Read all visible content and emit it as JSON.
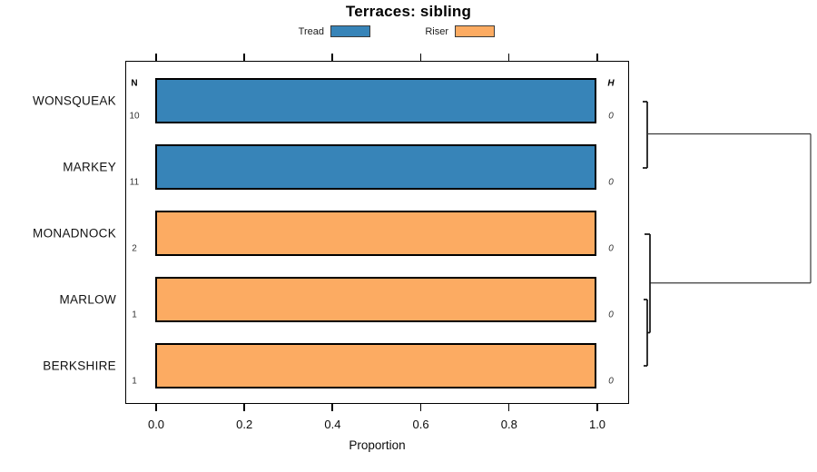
{
  "title": "Terraces: sibling",
  "legend": {
    "items": [
      {
        "label": "Tread",
        "color": "#3784b8"
      },
      {
        "label": "Riser",
        "color": "#fcab62"
      }
    ]
  },
  "columns": {
    "n_header": "N",
    "h_header": "H"
  },
  "rows": [
    {
      "label": "WONSQUEAK",
      "n": "10",
      "h": "0",
      "group": "Tread"
    },
    {
      "label": "MARKEY",
      "n": "11",
      "h": "0",
      "group": "Tread"
    },
    {
      "label": "MONADNOCK",
      "n": "2",
      "h": "0",
      "group": "Riser"
    },
    {
      "label": "MARLOW",
      "n": "1",
      "h": "0",
      "group": "Riser"
    },
    {
      "label": "BERKSHIRE",
      "n": "1",
      "h": "0",
      "group": "Riser"
    }
  ],
  "axis": {
    "x_tick_labels": [
      "0.0",
      "0.2",
      "0.4",
      "0.6",
      "0.8",
      "1.0"
    ],
    "x_label": "Proportion"
  },
  "chart_data": {
    "type": "bar",
    "orientation": "horizontal",
    "title": "Terraces: sibling",
    "categories": [
      "WONSQUEAK",
      "MARKEY",
      "MONADNOCK",
      "MARLOW",
      "BERKSHIRE"
    ],
    "series": [
      {
        "name": "Tread",
        "color": "#3784b8",
        "values": [
          1.0,
          1.0,
          0,
          0,
          0
        ]
      },
      {
        "name": "Riser",
        "color": "#fcab62",
        "values": [
          0,
          0,
          1.0,
          1.0,
          1.0
        ]
      }
    ],
    "annotations": {
      "N": [
        10,
        11,
        2,
        1,
        1
      ],
      "H": [
        0,
        0,
        0,
        0,
        0
      ]
    },
    "xlabel": "Proportion",
    "xlim": [
      0,
      1
    ],
    "x_ticks": [
      0.0,
      0.2,
      0.4,
      0.6,
      0.8,
      1.0
    ],
    "grid": false,
    "legend_position": "top",
    "dendrogram": {
      "description": "cluster tree on right side, all merge heights ~0 except root",
      "merges": [
        {
          "members": [
            "WONSQUEAK",
            "MARKEY"
          ],
          "height": 0
        },
        {
          "members": [
            "MARLOW",
            "BERKSHIRE"
          ],
          "height": 0
        },
        {
          "members": [
            "MONADNOCK",
            "MARLOW+BERKSHIRE"
          ],
          "height": 0
        },
        {
          "members": [
            "WONSQUEAK+MARKEY",
            "MONADNOCK+MARLOW+BERKSHIRE"
          ],
          "height": 1
        }
      ]
    }
  }
}
